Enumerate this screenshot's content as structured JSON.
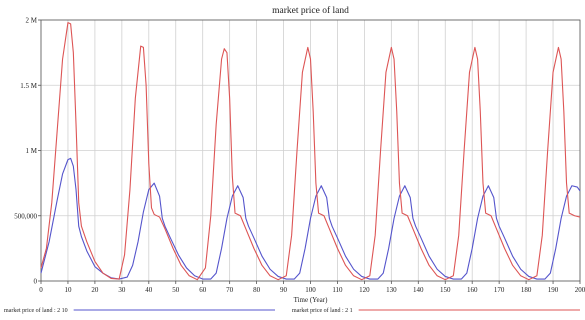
{
  "chart_data": {
    "type": "line",
    "title": "market price of land",
    "xlabel": "Time (Year)",
    "ylabel": "",
    "xlim": [
      0,
      200
    ],
    "ylim": [
      0,
      2000000
    ],
    "x_ticks": [
      0,
      10,
      20,
      30,
      40,
      50,
      60,
      70,
      80,
      90,
      100,
      110,
      120,
      130,
      140,
      150,
      160,
      170,
      180,
      190,
      200
    ],
    "y_ticks": [
      {
        "value": 0,
        "label": "0"
      },
      {
        "value": 500000,
        "label": "500,000"
      },
      {
        "value": 1000000,
        "label": "1 M"
      },
      {
        "value": 1500000,
        "label": "1.5 M"
      },
      {
        "value": 2000000,
        "label": "2 M"
      }
    ],
    "grid": true,
    "legend_position": "bottom",
    "series": [
      {
        "name": "market price of land : 2 10",
        "color": "#5555cc",
        "points": [
          [
            0,
            60000
          ],
          [
            3,
            300000
          ],
          [
            6,
            620000
          ],
          [
            8,
            820000
          ],
          [
            10,
            930000
          ],
          [
            11,
            940000
          ],
          [
            12,
            880000
          ],
          [
            13,
            700000
          ],
          [
            14,
            420000
          ],
          [
            15,
            340000
          ],
          [
            17,
            230000
          ],
          [
            20,
            110000
          ],
          [
            23,
            60000
          ],
          [
            26,
            25000
          ],
          [
            29,
            15000
          ],
          [
            32,
            30000
          ],
          [
            34,
            120000
          ],
          [
            36,
            300000
          ],
          [
            38,
            530000
          ],
          [
            40,
            700000
          ],
          [
            42,
            750000
          ],
          [
            44,
            650000
          ],
          [
            45,
            480000
          ],
          [
            46,
            420000
          ],
          [
            48,
            330000
          ],
          [
            51,
            200000
          ],
          [
            54,
            100000
          ],
          [
            57,
            40000
          ],
          [
            60,
            15000
          ],
          [
            63,
            15000
          ],
          [
            65,
            60000
          ],
          [
            67,
            250000
          ],
          [
            69,
            480000
          ],
          [
            71,
            650000
          ],
          [
            73,
            730000
          ],
          [
            75,
            640000
          ],
          [
            76,
            480000
          ],
          [
            77,
            420000
          ],
          [
            79,
            330000
          ],
          [
            82,
            190000
          ],
          [
            85,
            90000
          ],
          [
            88,
            35000
          ],
          [
            91,
            15000
          ],
          [
            94,
            15000
          ],
          [
            96,
            60000
          ],
          [
            98,
            250000
          ],
          [
            100,
            480000
          ],
          [
            102,
            650000
          ],
          [
            104,
            730000
          ],
          [
            106,
            640000
          ],
          [
            107,
            480000
          ],
          [
            108,
            420000
          ],
          [
            110,
            330000
          ],
          [
            113,
            190000
          ],
          [
            116,
            90000
          ],
          [
            119,
            35000
          ],
          [
            122,
            15000
          ],
          [
            125,
            15000
          ],
          [
            127,
            60000
          ],
          [
            129,
            250000
          ],
          [
            131,
            480000
          ],
          [
            133,
            650000
          ],
          [
            135,
            730000
          ],
          [
            137,
            640000
          ],
          [
            138,
            480000
          ],
          [
            139,
            420000
          ],
          [
            141,
            330000
          ],
          [
            144,
            190000
          ],
          [
            147,
            90000
          ],
          [
            150,
            35000
          ],
          [
            153,
            15000
          ],
          [
            156,
            15000
          ],
          [
            158,
            60000
          ],
          [
            160,
            250000
          ],
          [
            162,
            480000
          ],
          [
            164,
            650000
          ],
          [
            166,
            730000
          ],
          [
            168,
            640000
          ],
          [
            169,
            480000
          ],
          [
            170,
            420000
          ],
          [
            172,
            330000
          ],
          [
            175,
            190000
          ],
          [
            178,
            90000
          ],
          [
            181,
            35000
          ],
          [
            184,
            15000
          ],
          [
            187,
            15000
          ],
          [
            189,
            60000
          ],
          [
            191,
            250000
          ],
          [
            193,
            480000
          ],
          [
            195,
            650000
          ],
          [
            197,
            730000
          ],
          [
            199,
            720000
          ],
          [
            200,
            690000
          ]
        ]
      },
      {
        "name": "market price of land : 2 1",
        "color": "#dd5555",
        "points": [
          [
            0,
            100000
          ],
          [
            2,
            250000
          ],
          [
            4,
            600000
          ],
          [
            6,
            1150000
          ],
          [
            8,
            1700000
          ],
          [
            10,
            1980000
          ],
          [
            11,
            1970000
          ],
          [
            12,
            1750000
          ],
          [
            13,
            1200000
          ],
          [
            14,
            600000
          ],
          [
            15,
            420000
          ],
          [
            17,
            300000
          ],
          [
            20,
            150000
          ],
          [
            23,
            60000
          ],
          [
            26,
            20000
          ],
          [
            29,
            15000
          ],
          [
            31,
            200000
          ],
          [
            33,
            700000
          ],
          [
            35,
            1400000
          ],
          [
            37,
            1800000
          ],
          [
            38,
            1790000
          ],
          [
            39,
            1500000
          ],
          [
            40,
            900000
          ],
          [
            41,
            560000
          ],
          [
            42,
            510000
          ],
          [
            44,
            490000
          ],
          [
            46,
            400000
          ],
          [
            49,
            250000
          ],
          [
            52,
            120000
          ],
          [
            55,
            40000
          ],
          [
            58,
            10000
          ],
          [
            61,
            100000
          ],
          [
            63,
            500000
          ],
          [
            65,
            1200000
          ],
          [
            67,
            1700000
          ],
          [
            68,
            1780000
          ],
          [
            69,
            1750000
          ],
          [
            70,
            1400000
          ],
          [
            71,
            800000
          ],
          [
            72,
            520000
          ],
          [
            74,
            500000
          ],
          [
            76,
            400000
          ],
          [
            79,
            250000
          ],
          [
            82,
            120000
          ],
          [
            85,
            40000
          ],
          [
            88,
            10000
          ],
          [
            91,
            40000
          ],
          [
            93,
            350000
          ],
          [
            95,
            1000000
          ],
          [
            97,
            1600000
          ],
          [
            99,
            1790000
          ],
          [
            100,
            1700000
          ],
          [
            101,
            1300000
          ],
          [
            102,
            750000
          ],
          [
            103,
            520000
          ],
          [
            105,
            500000
          ],
          [
            107,
            400000
          ],
          [
            110,
            250000
          ],
          [
            113,
            120000
          ],
          [
            116,
            40000
          ],
          [
            119,
            10000
          ],
          [
            122,
            40000
          ],
          [
            124,
            350000
          ],
          [
            126,
            1000000
          ],
          [
            128,
            1600000
          ],
          [
            130,
            1790000
          ],
          [
            131,
            1700000
          ],
          [
            132,
            1300000
          ],
          [
            133,
            750000
          ],
          [
            134,
            520000
          ],
          [
            136,
            500000
          ],
          [
            138,
            400000
          ],
          [
            141,
            250000
          ],
          [
            144,
            120000
          ],
          [
            147,
            40000
          ],
          [
            150,
            10000
          ],
          [
            153,
            40000
          ],
          [
            155,
            350000
          ],
          [
            157,
            1000000
          ],
          [
            159,
            1600000
          ],
          [
            161,
            1790000
          ],
          [
            162,
            1700000
          ],
          [
            163,
            1300000
          ],
          [
            164,
            750000
          ],
          [
            165,
            520000
          ],
          [
            167,
            500000
          ],
          [
            169,
            400000
          ],
          [
            172,
            250000
          ],
          [
            175,
            120000
          ],
          [
            178,
            40000
          ],
          [
            181,
            10000
          ],
          [
            184,
            40000
          ],
          [
            186,
            350000
          ],
          [
            188,
            1000000
          ],
          [
            190,
            1600000
          ],
          [
            192,
            1790000
          ],
          [
            193,
            1700000
          ],
          [
            194,
            1300000
          ],
          [
            195,
            750000
          ],
          [
            196,
            520000
          ],
          [
            198,
            500000
          ],
          [
            200,
            490000
          ]
        ]
      }
    ]
  }
}
